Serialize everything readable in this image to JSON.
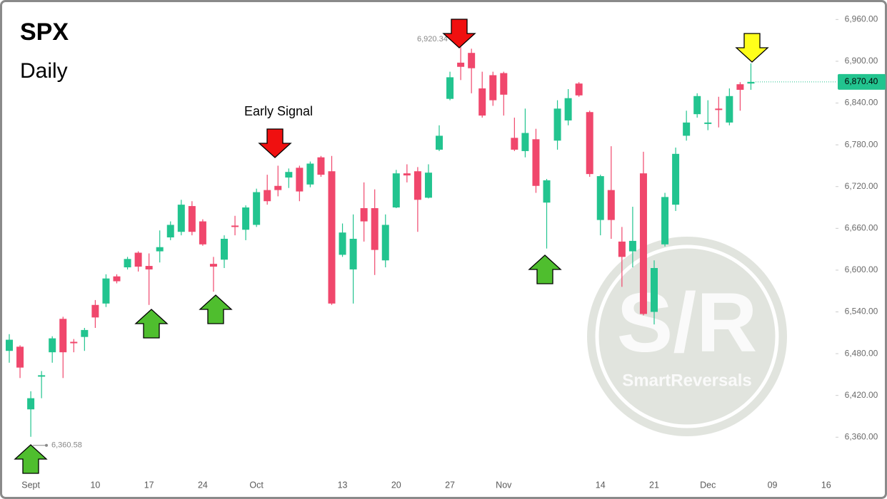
{
  "chart_data": {
    "type": "candlestick",
    "title": "SPX",
    "subtitle": "Daily",
    "annotation": "Early Signal",
    "watermark": "S/R",
    "watermark_subtitle": "SmartReversals",
    "up_color": "#22c48f",
    "down_color": "#f0476c",
    "categories": [
      null,
      null,
      "Sept",
      null,
      null,
      null,
      null,
      null,
      "10",
      null,
      null,
      null,
      null,
      "17",
      null,
      null,
      null,
      null,
      "24",
      null,
      null,
      null,
      null,
      "Oct",
      null,
      null,
      null,
      null,
      null,
      null,
      null,
      "13",
      null,
      null,
      null,
      null,
      "20",
      null,
      null,
      null,
      null,
      "27",
      null,
      null,
      null,
      null,
      "Nov",
      null,
      null,
      null,
      null,
      null,
      null,
      null,
      null,
      "14",
      null,
      null,
      null,
      null,
      "21",
      null,
      null,
      null,
      null,
      "Dec",
      null,
      null,
      null,
      null,
      null,
      "09",
      null,
      null,
      null,
      null,
      "16"
    ],
    "open": [
      6484,
      6490,
      6400,
      6447,
      6482,
      6530,
      6497,
      6504,
      6550,
      6552,
      6591,
      6604,
      6625,
      6606,
      6627,
      6647,
      6655,
      6692,
      6670,
      6609,
      6615,
      6664,
      6658,
      6665,
      6715,
      6721,
      6733,
      6747,
      6723,
      6762,
      6742,
      6622,
      6601,
      6689,
      6689,
      6614,
      6690,
      6739,
      6742,
      6704,
      6773,
      6846,
      6898,
      6912,
      6861,
      6880,
      6883,
      6790,
      6771,
      6788,
      6697,
      6786,
      6815,
      6868,
      6827,
      6672,
      6715,
      6641,
      6627,
      6739,
      6540,
      6637,
      6694,
      6793,
      6824,
      6811,
      6832,
      6812,
      6867,
      6868,
      null,
      null,
      null,
      null,
      null,
      null,
      null
    ],
    "high": [
      6508,
      6492,
      6426,
      6455,
      6505,
      6533,
      6501,
      6517,
      6557,
      6594,
      6594,
      6619,
      6627,
      6624,
      6657,
      6670,
      6701,
      6699,
      6673,
      6619,
      6650,
      6678,
      6693,
      6717,
      6737,
      6750,
      6746,
      6750,
      6756,
      6764,
      6764,
      6667,
      6680,
      6726,
      6716,
      6680,
      6744,
      6752,
      6748,
      6752,
      6808,
      6885,
      6920.34,
      6918,
      6885,
      6885,
      6885,
      6819,
      6832,
      6803,
      6731,
      6844,
      6860,
      6870,
      6829,
      6737,
      6778,
      6662,
      6691,
      6770,
      6614,
      6711,
      6776,
      6829,
      6854,
      6844,
      6849,
      6861,
      6870,
      6897,
      null,
      null,
      null,
      null,
      null,
      null,
      null
    ],
    "low": [
      6467,
      6445,
      6360.58,
      6416,
      6467,
      6445,
      6482,
      6484,
      6517,
      6547,
      6581,
      6601,
      6598,
      6550,
      6611,
      6643,
      6650,
      6650,
      6635,
      6569,
      6603,
      6650,
      6643,
      6662,
      6694,
      6706,
      6718,
      6699,
      6719,
      6734,
      6550,
      6619,
      6552,
      6641,
      6593,
      6604,
      6689,
      6726,
      6655,
      6703,
      6771,
      6844,
      6873,
      6854,
      6819,
      6836,
      6822,
      6771,
      6762,
      6711,
      6631,
      6773,
      6808,
      6849,
      6734,
      6650,
      6645,
      6576,
      6604,
      6535,
      6522,
      6634,
      6685,
      6786,
      6819,
      6801,
      6805,
      6808,
      6829,
      6859,
      null,
      null,
      null,
      null,
      null,
      null,
      null
    ],
    "close": [
      6500,
      6460,
      6416,
      6449,
      6502,
      6482,
      6495,
      6514,
      6532,
      6588,
      6584,
      6616,
      6605,
      6601,
      6633,
      6665,
      6694,
      6655,
      6637,
      6605,
      6645,
      6663,
      6690,
      6712,
      6699,
      6715,
      6741,
      6713,
      6753,
      6737,
      6552,
      6654,
      6645,
      6670,
      6629,
      6665,
      6739,
      6736,
      6701,
      6740,
      6793,
      6877,
      6892,
      6890,
      6822,
      6844,
      6852,
      6773,
      6797,
      6721,
      6729,
      6832,
      6847,
      6851,
      6738,
      6735,
      6672,
      6619,
      6642,
      6537,
      6603,
      6705,
      6767,
      6812,
      6850,
      6812,
      6830,
      6850,
      6859,
      6870.4,
      null,
      null,
      null,
      null,
      null,
      null,
      null
    ],
    "price_labels": [
      {
        "value": 6920.34,
        "label": "6,920.34"
      },
      {
        "value": 6360.58,
        "label": "6,360.58"
      }
    ],
    "last_price": {
      "value": 6870.4,
      "label": "6,870.40"
    },
    "ylim": [
      6304,
      6988
    ],
    "yticks": [
      {
        "value": 6360,
        "label": "6,360.00"
      },
      {
        "value": 6420,
        "label": "6,420.00"
      },
      {
        "value": 6480,
        "label": "6,480.00"
      },
      {
        "value": 6540,
        "label": "6,540.00"
      },
      {
        "value": 6600,
        "label": "6,600.00"
      },
      {
        "value": 6660,
        "label": "6,660.00"
      },
      {
        "value": 6720,
        "label": "6,720.00"
      },
      {
        "value": 6780,
        "label": "6,780.00"
      },
      {
        "value": 6840,
        "label": "6,840.00"
      },
      {
        "value": 6900,
        "label": "6,900.00"
      },
      {
        "value": 6960,
        "label": "6,960.00"
      }
    ]
  }
}
